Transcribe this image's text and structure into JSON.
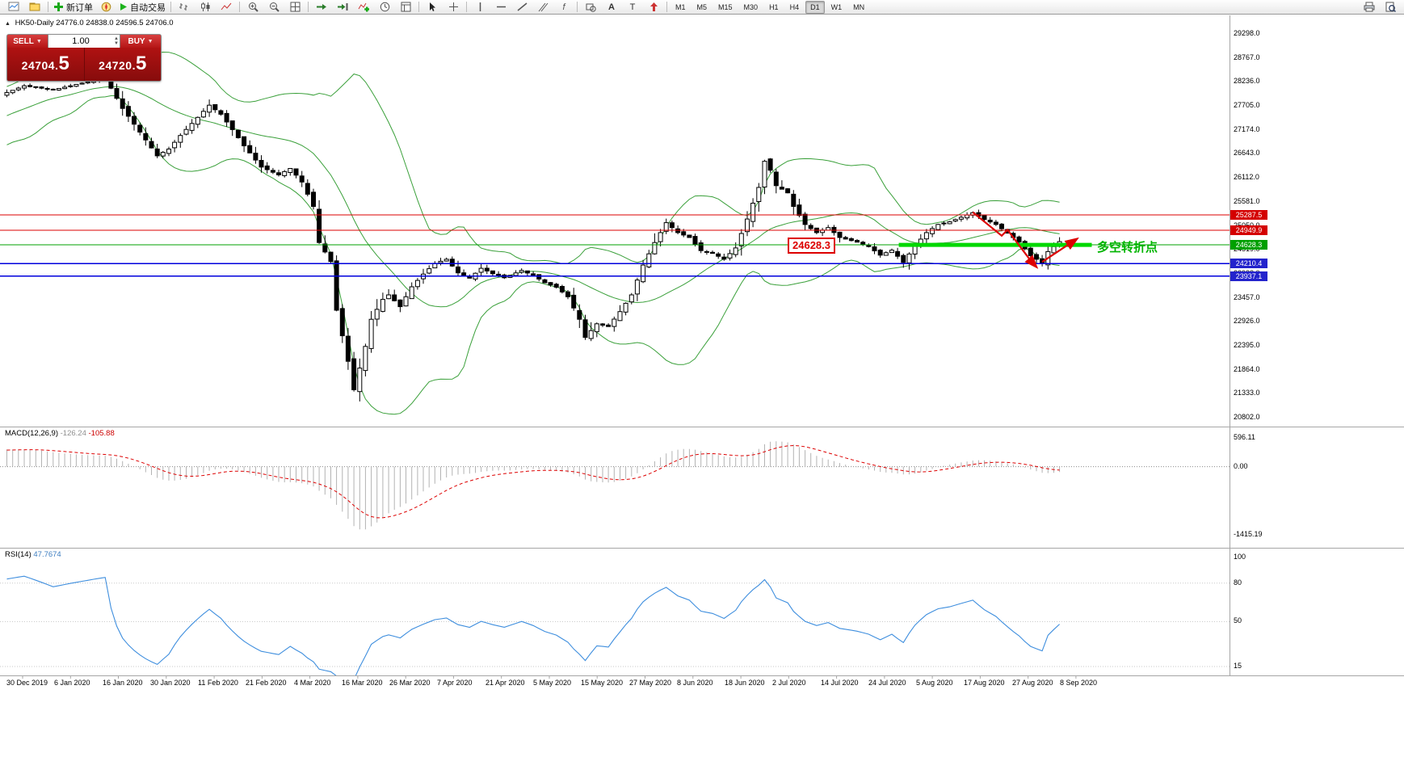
{
  "window": {
    "title": "HK50-Daily"
  },
  "toolbar": {
    "items": [
      {
        "name": "new-chart-icon",
        "type": "icon"
      },
      {
        "name": "profiles-icon",
        "type": "icon"
      },
      {
        "name": "toolbar-separator",
        "type": "sep"
      },
      {
        "name": "new-order-button",
        "type": "button",
        "label": "新订单"
      },
      {
        "name": "metaeditor-icon",
        "type": "icon"
      },
      {
        "name": "autotrading-button",
        "type": "button",
        "label": "自动交易"
      },
      {
        "name": "toolbar-separator",
        "type": "sep"
      },
      {
        "name": "bar-chart-icon",
        "type": "icon"
      },
      {
        "name": "candlestick-chart-icon",
        "type": "icon"
      },
      {
        "name": "line-chart-icon",
        "type": "icon"
      },
      {
        "name": "toolbar-separator",
        "type": "sep"
      },
      {
        "name": "zoom-in-icon",
        "type": "icon"
      },
      {
        "name": "zoom-out-icon",
        "type": "icon"
      },
      {
        "name": "tile-windows-icon",
        "type": "icon"
      },
      {
        "name": "toolbar-separator",
        "type": "sep"
      },
      {
        "name": "auto-scroll-icon",
        "type": "icon"
      },
      {
        "name": "chart-shift-icon",
        "type": "icon"
      },
      {
        "name": "indicators-icon",
        "type": "icon"
      },
      {
        "name": "periods-icon",
        "type": "icon"
      },
      {
        "name": "templates-icon",
        "type": "icon"
      },
      {
        "name": "toolbar-separator",
        "type": "sep"
      },
      {
        "name": "cursor-icon",
        "type": "icon"
      },
      {
        "name": "crosshair-icon",
        "type": "icon"
      },
      {
        "name": "toolbar-separator",
        "type": "sep"
      },
      {
        "name": "vertical-line-icon",
        "type": "icon"
      },
      {
        "name": "horizontal-line-icon",
        "type": "icon"
      },
      {
        "name": "trendline-icon",
        "type": "icon"
      },
      {
        "name": "channel-icon",
        "type": "icon"
      },
      {
        "name": "fibonacci-icon",
        "type": "icon"
      },
      {
        "name": "toolbar-separator",
        "type": "sep"
      },
      {
        "name": "shapes-icon",
        "type": "icon"
      },
      {
        "name": "text-icon",
        "type": "icon"
      },
      {
        "name": "text-label-icon",
        "type": "icon"
      },
      {
        "name": "arrows-icon",
        "type": "icon"
      },
      {
        "name": "toolbar-separator",
        "type": "sep"
      }
    ],
    "timeframes": [
      "M1",
      "M5",
      "M15",
      "M30",
      "H1",
      "H4",
      "D1",
      "W1",
      "MN"
    ],
    "active_timeframe": "D1",
    "right_icons": [
      {
        "name": "print-icon"
      },
      {
        "name": "print-preview-icon"
      }
    ]
  },
  "order_panel": {
    "sell_label": "SELL",
    "buy_label": "BUY",
    "volume": "1.00",
    "sell_price_main": "24704.",
    "sell_price_frac": "5",
    "buy_price_main": "24720.",
    "buy_price_frac": "5"
  },
  "chart_header": {
    "symbol": "HK50-Daily",
    "open": "24776.0",
    "high": "24838.0",
    "low": "24596.5",
    "close": "24706.0"
  },
  "annotations": {
    "price_label": "24628.3",
    "turning_point_text": "多空转折点"
  },
  "price_axis": {
    "labels": [
      "29298.0",
      "28767.0",
      "28236.0",
      "27705.0",
      "27174.0",
      "26643.0",
      "26112.0",
      "25581.0",
      "25050.0",
      "24519.0",
      "23988.0",
      "23457.0",
      "22926.0",
      "22395.0",
      "21864.0",
      "21333.0",
      "20802.0"
    ],
    "badges": [
      {
        "value": "25287.5",
        "price": 25287.5,
        "color": "#d40000"
      },
      {
        "value": "24949.9",
        "price": 24949.9,
        "color": "#d40000"
      },
      {
        "value": "24628.3",
        "price": 24628.3,
        "color": "#00a000"
      },
      {
        "value": "24210.4",
        "price": 24210.4,
        "color": "#2323cc"
      },
      {
        "value": "23937.1",
        "price": 23937.1,
        "color": "#2323cc"
      }
    ]
  },
  "macd_panel": {
    "label": "MACD(12,26,9)",
    "value_main": "-126.24",
    "value_signal": "-105.88",
    "axis": [
      "596.11",
      "0.00",
      "-1415.19"
    ]
  },
  "rsi_panel": {
    "label": "RSI(14)",
    "value": "47.7674",
    "axis": [
      "100",
      "80",
      "50",
      "15"
    ]
  },
  "time_axis": {
    "labels": [
      "30 Dec 2019",
      "6 Jan 2020",
      "16 Jan 2020",
      "30 Jan 2020",
      "11 Feb 2020",
      "21 Feb 2020",
      "4 Mar 2020",
      "16 Mar 2020",
      "26 Mar 2020",
      "7 Apr 2020",
      "21 Apr 2020",
      "5 May 2020",
      "15 May 2020",
      "27 May 2020",
      "8 Jun 2020",
      "18 Jun 2020",
      "2 Jul 2020",
      "14 Jul 2020",
      "24 Jul 2020",
      "5 Aug 2020",
      "17 Aug 2020",
      "27 Aug 2020",
      "8 Sep 2020"
    ]
  },
  "chart_data": {
    "type": "candlestick",
    "symbol": "HK50",
    "timeframe": "Daily",
    "ohlc_display": {
      "open": 24776.0,
      "high": 24838.0,
      "low": 24596.5,
      "close": 24706.0
    },
    "ylim": [
      20802,
      29298
    ],
    "y_step": 531,
    "candle_count": 183,
    "close_anchors": [
      [
        0,
        28000
      ],
      [
        3,
        28150
      ],
      [
        8,
        28060
      ],
      [
        12,
        28180
      ],
      [
        17,
        28320
      ],
      [
        20,
        27650
      ],
      [
        24,
        26950
      ],
      [
        26,
        26600
      ],
      [
        28,
        26750
      ],
      [
        30,
        27050
      ],
      [
        33,
        27450
      ],
      [
        35,
        27720
      ],
      [
        37,
        27520
      ],
      [
        39,
        27180
      ],
      [
        41,
        26820
      ],
      [
        44,
        26350
      ],
      [
        47,
        26180
      ],
      [
        49,
        26320
      ],
      [
        51,
        26020
      ],
      [
        53,
        25480
      ],
      [
        54,
        24680
      ],
      [
        56,
        24260
      ],
      [
        57,
        23180
      ],
      [
        59,
        22050
      ],
      [
        60,
        21420
      ],
      [
        61,
        21900
      ],
      [
        62,
        22380
      ],
      [
        63,
        22980
      ],
      [
        65,
        23420
      ],
      [
        66,
        23520
      ],
      [
        68,
        23260
      ],
      [
        70,
        23700
      ],
      [
        72,
        23980
      ],
      [
        74,
        24220
      ],
      [
        76,
        24310
      ],
      [
        78,
        24010
      ],
      [
        80,
        23890
      ],
      [
        82,
        24110
      ],
      [
        84,
        23990
      ],
      [
        86,
        23900
      ],
      [
        89,
        24060
      ],
      [
        91,
        23950
      ],
      [
        93,
        23790
      ],
      [
        95,
        23690
      ],
      [
        97,
        23480
      ],
      [
        99,
        22980
      ],
      [
        100,
        22580
      ],
      [
        102,
        22880
      ],
      [
        104,
        22820
      ],
      [
        106,
        23150
      ],
      [
        108,
        23520
      ],
      [
        110,
        24180
      ],
      [
        112,
        24680
      ],
      [
        114,
        25120
      ],
      [
        116,
        24900
      ],
      [
        118,
        24790
      ],
      [
        120,
        24500
      ],
      [
        122,
        24440
      ],
      [
        124,
        24310
      ],
      [
        126,
        24560
      ],
      [
        128,
        25200
      ],
      [
        130,
        25900
      ],
      [
        131,
        26480
      ],
      [
        132,
        26280
      ],
      [
        133,
        25940
      ],
      [
        135,
        25780
      ],
      [
        136,
        25480
      ],
      [
        138,
        25080
      ],
      [
        140,
        24900
      ],
      [
        142,
        25010
      ],
      [
        144,
        24790
      ],
      [
        147,
        24690
      ],
      [
        149,
        24590
      ],
      [
        151,
        24400
      ],
      [
        153,
        24510
      ],
      [
        155,
        24240
      ],
      [
        157,
        24610
      ],
      [
        159,
        24900
      ],
      [
        161,
        25080
      ],
      [
        163,
        25140
      ],
      [
        165,
        25240
      ],
      [
        167,
        25340
      ],
      [
        169,
        25190
      ],
      [
        171,
        25080
      ],
      [
        173,
        24890
      ],
      [
        175,
        24690
      ],
      [
        177,
        24390
      ],
      [
        179,
        24230
      ],
      [
        180,
        24480
      ],
      [
        182,
        24700
      ]
    ],
    "hlines": [
      {
        "price": 25287.5,
        "color": "#dd0000",
        "width": 1
      },
      {
        "price": 24949.9,
        "color": "#dd0000",
        "width": 1
      },
      {
        "price": 24628.3,
        "color": "#00a000",
        "width": 1
      },
      {
        "price": 24210.4,
        "color": "#0000dd",
        "width": 1.4
      },
      {
        "price": 23937.1,
        "color": "#0000dd",
        "width": 1.4
      }
    ],
    "highlight_segment": {
      "price": 24628.3,
      "from_x_frac": 0.731,
      "to_x_frac": 0.888,
      "color": "#00d800",
      "width": 5
    },
    "arrows": {
      "down": [
        [
          167,
          25350
        ],
        [
          172,
          24830
        ],
        [
          173,
          24960
        ],
        [
          177,
          24280
        ],
        [
          178,
          24140
        ]
      ],
      "up": [
        [
          179,
          24250
        ],
        [
          185,
          24760
        ]
      ],
      "color": "#dd0000"
    },
    "indicators": {
      "bollinger": {
        "period": 20,
        "deviation": 2,
        "color": "#3aa03a"
      },
      "macd": {
        "fast": 12,
        "slow": 26,
        "signal": 9
      },
      "rsi": {
        "period": 14,
        "value": 47.7674
      }
    },
    "macd_ylim": [
      -1415.19,
      596.11
    ],
    "rsi_levels": [
      80,
      50,
      15
    ]
  }
}
